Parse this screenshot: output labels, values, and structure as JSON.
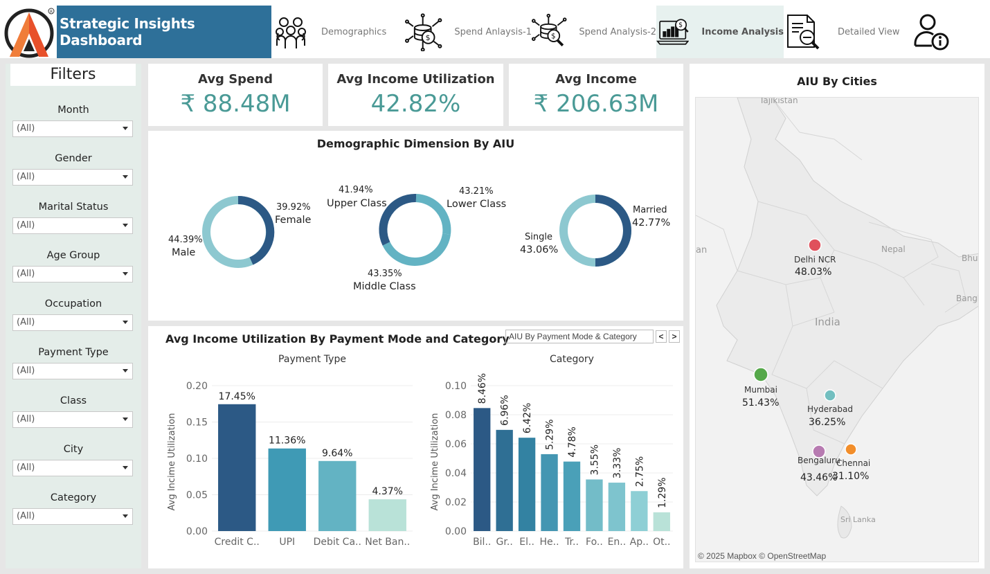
{
  "header": {
    "title": "Strategic Insights Dashboard",
    "nav": [
      {
        "label": "Demographics",
        "icon": "people-group-icon",
        "active": false
      },
      {
        "label": "Spend Anlaysis-1",
        "icon": "coins-network-icon",
        "active": false
      },
      {
        "label": "Spend Analysis-2",
        "icon": "coins-search-icon",
        "active": false
      },
      {
        "label": "Income Analysis",
        "icon": "laptop-chart-icon",
        "active": true
      },
      {
        "label": "Detailed View",
        "icon": "document-search-icon",
        "active": false
      },
      {
        "label": "",
        "icon": "user-info-icon",
        "active": false
      }
    ]
  },
  "filters": {
    "title": "Filters",
    "items": [
      {
        "label": "Month",
        "value": "(All)"
      },
      {
        "label": "Gender",
        "value": "(All)"
      },
      {
        "label": "Marital Status",
        "value": "(All)"
      },
      {
        "label": "Age Group",
        "value": "(All)"
      },
      {
        "label": "Occupation",
        "value": "(All)"
      },
      {
        "label": "Payment Type",
        "value": "(All)"
      },
      {
        "label": "Class",
        "value": "(All)"
      },
      {
        "label": "City",
        "value": "(All)"
      },
      {
        "label": "Category",
        "value": "(All)"
      }
    ]
  },
  "kpis": [
    {
      "title": "Avg Spend",
      "value": "₹ 88.48M"
    },
    {
      "title": "Avg Income Utilization",
      "value": "42.82%"
    },
    {
      "title": "Avg Income",
      "value": "₹ 206.63M"
    }
  ],
  "demographic": {
    "title": "Demographic Dimension By AIU",
    "gender": {
      "female_pct": "39.92%",
      "female_label": "Female",
      "male_pct": "44.39%",
      "male_label": "Male",
      "female_value": 39.92,
      "male_value": 44.39
    },
    "class": {
      "upper_pct": "41.94%",
      "upper_label": "Upper Class",
      "lower_pct": "43.21%",
      "lower_label": "Lower Class",
      "middle_pct": "43.35%",
      "middle_label": "Middle Class",
      "upper_value": 41.94,
      "lower_value": 43.21,
      "middle_value": 43.35
    },
    "marital": {
      "married_label": "Married",
      "married_pct": "42.77%",
      "single_label": "Single",
      "single_pct": "43.06%",
      "married_value": 42.77,
      "single_value": 43.06
    }
  },
  "payment_section": {
    "title": "Avg Income Utilization By Payment Mode and Category",
    "selector": "AIU By Payment Mode & Category",
    "prev_label": "<",
    "next_label": ">"
  },
  "chart_data": [
    {
      "type": "bar",
      "title": "Payment Type",
      "ylabel": "Avg Incime Utilization",
      "ylim": [
        0,
        0.2
      ],
      "yticks": [
        "0.00",
        "0.05",
        "0.10",
        "0.15",
        "0.20"
      ],
      "categories": [
        "Credit C..",
        "UPI",
        "Debit Ca..",
        "Net Ban.."
      ],
      "values": [
        0.1745,
        0.1136,
        0.0964,
        0.0437
      ],
      "labels": [
        "17.45%",
        "11.36%",
        "9.64%",
        "4.37%"
      ],
      "colors": [
        "#2c5985",
        "#3f9ab5",
        "#63b3c3",
        "#b9e2d8"
      ]
    },
    {
      "type": "bar",
      "title": "Category",
      "ylabel": "Avg Incime Utilization",
      "ylim": [
        0,
        0.1
      ],
      "yticks": [
        "0.00",
        "0.02",
        "0.04",
        "0.06",
        "0.08",
        "0.10"
      ],
      "categories": [
        "Bil..",
        "Gr..",
        "El..",
        "He..",
        "Tr..",
        "Fo..",
        "En..",
        "Ap..",
        "Ot.."
      ],
      "values": [
        0.0846,
        0.0696,
        0.0642,
        0.0529,
        0.0478,
        0.0355,
        0.0333,
        0.0275,
        0.0129
      ],
      "labels": [
        "8.46%",
        "6.96%",
        "6.42%",
        "5.29%",
        "4.78%",
        "3.55%",
        "3.33%",
        "2.75%",
        "1.29%"
      ],
      "colors": [
        "#2c5985",
        "#2f6f94",
        "#3382a2",
        "#4496b2",
        "#4aa0b8",
        "#73bcc8",
        "#7ec4ce",
        "#8ecfd5",
        "#b9e2d8"
      ]
    }
  ],
  "map": {
    "title": "AIU By Cities",
    "attribution": "© 2025 Mapbox © OpenStreetMap",
    "place_labels": [
      "Tajikistan",
      "an",
      "Nepal",
      "Bhut",
      "Bangla",
      "India",
      "Sri Lanka"
    ],
    "cities": [
      {
        "name": "Delhi NCR",
        "value": "48.03%",
        "color": "#e0505c"
      },
      {
        "name": "Mumbai",
        "value": "51.43%",
        "color": "#55a84a"
      },
      {
        "name": "Hyderabad",
        "value": "36.25%",
        "color": "#73bfc0"
      },
      {
        "name": "Bengaluru",
        "value": "43.46%",
        "color": "#b77bb1"
      },
      {
        "name": "Chennai",
        "value": "31.10%",
        "color": "#f28e2b"
      }
    ]
  }
}
